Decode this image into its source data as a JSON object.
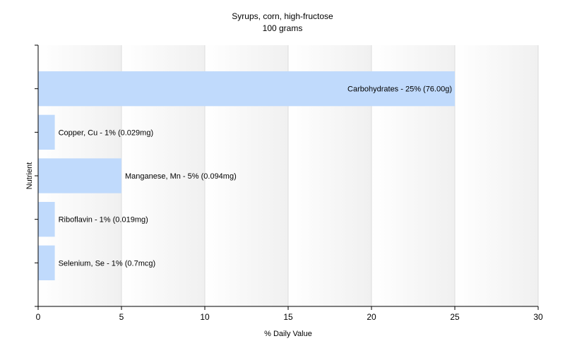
{
  "chart_data": {
    "type": "bar",
    "orientation": "horizontal",
    "title": "Syrups, corn, high-fructose",
    "subtitle": "100 grams",
    "xlabel": "% Daily Value",
    "ylabel": "Nutrient",
    "xlim": [
      0,
      30
    ],
    "xticks": [
      0,
      5,
      10,
      15,
      20,
      25,
      30
    ],
    "grid": true,
    "legend": "none",
    "bar_color": "#c0dafc",
    "bars": [
      {
        "name": "Carbohydrates",
        "value": 25,
        "label": "Carbohydrates - 25% (76.00g)"
      },
      {
        "name": "Copper, Cu",
        "value": 1,
        "label": "Copper, Cu - 1% (0.029mg)"
      },
      {
        "name": "Manganese, Mn",
        "value": 5,
        "label": "Manganese, Mn - 5% (0.094mg)"
      },
      {
        "name": "Riboflavin",
        "value": 1,
        "label": "Riboflavin - 1% (0.019mg)"
      },
      {
        "name": "Selenium, Se",
        "value": 1,
        "label": "Selenium, Se - 1% (0.7mcg)"
      }
    ]
  }
}
